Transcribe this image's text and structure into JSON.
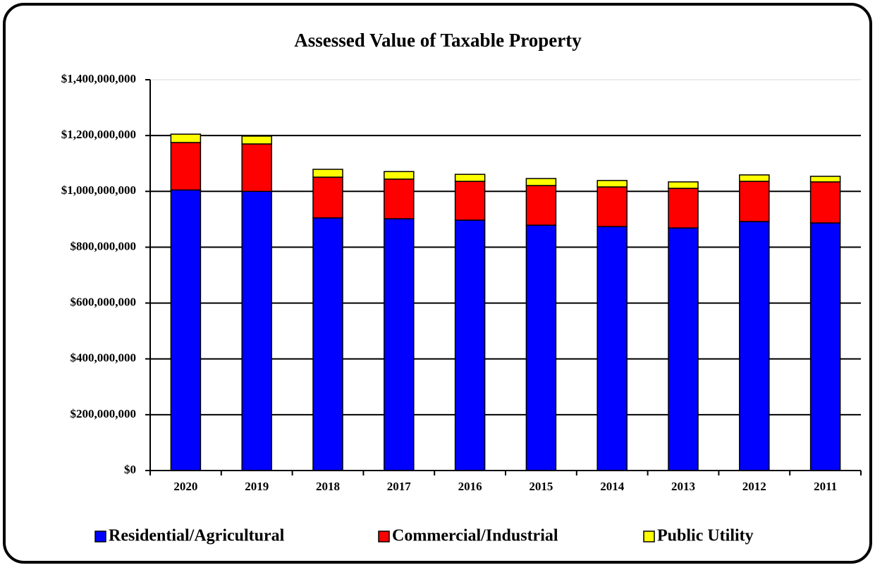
{
  "chart_data": {
    "type": "stacked_bar",
    "title": "Assessed Value of Taxable Property",
    "categories": [
      "2020",
      "2019",
      "2018",
      "2017",
      "2016",
      "2015",
      "2014",
      "2013",
      "2012",
      "2011"
    ],
    "series": [
      {
        "name": "Residential/Agricultural",
        "color": "#0000ff",
        "values": [
          1005000000,
          1000000000,
          905000000,
          902000000,
          897000000,
          879000000,
          874000000,
          869000000,
          892000000,
          887000000
        ]
      },
      {
        "name": "Commercial/Industrial",
        "color": "#ff0000",
        "values": [
          170000000,
          170000000,
          146000000,
          142000000,
          139000000,
          142000000,
          142000000,
          142000000,
          144000000,
          147000000
        ]
      },
      {
        "name": "Public Utility",
        "color": "#ffff00",
        "values": [
          30000000,
          28000000,
          28000000,
          27000000,
          25000000,
          25000000,
          23000000,
          23000000,
          23000000,
          20000000
        ]
      }
    ],
    "ylim": [
      0,
      1400000000
    ],
    "yticks": [
      {
        "value": 0,
        "label": "$0"
      },
      {
        "value": 200000000,
        "label": "$200,000,000"
      },
      {
        "value": 400000000,
        "label": "$400,000,000"
      },
      {
        "value": 600000000,
        "label": "$600,000,000"
      },
      {
        "value": 800000000,
        "label": "$800,000,000"
      },
      {
        "value": 1000000000,
        "label": "$1,000,000,000"
      },
      {
        "value": 1200000000,
        "label": "$1,200,000,000"
      },
      {
        "value": 1400000000,
        "label": "$1,400,000,000"
      }
    ],
    "grid": true,
    "legend": "bottom"
  }
}
